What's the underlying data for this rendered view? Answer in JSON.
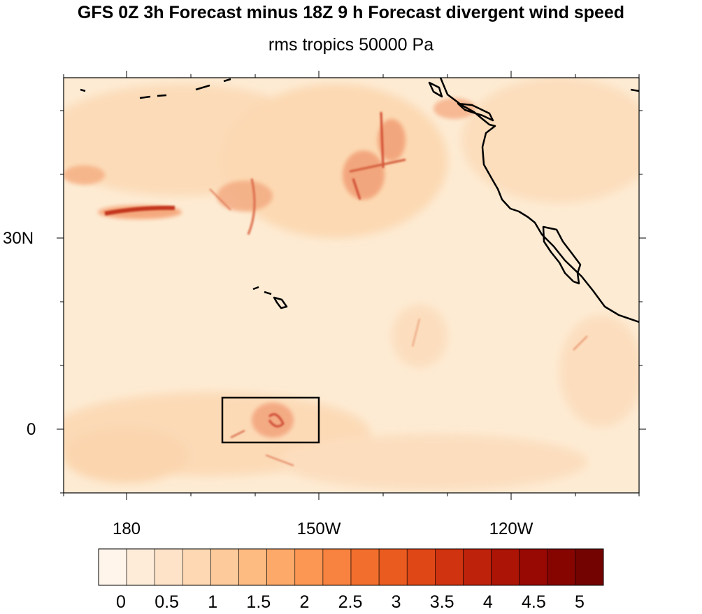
{
  "title": "GFS 0Z 3h Forecast minus 18Z 9 h Forecast divergent wind speed",
  "subtitle": "rms tropics 50000 Pa",
  "map": {
    "lat_labels": [
      "30N",
      "0"
    ],
    "lon_labels": [
      "180",
      "150W",
      "120W"
    ],
    "coastline_color": "#000000",
    "highlight_box": "box",
    "background_color": "#fdebd3"
  },
  "colorbar": {
    "labels": [
      "0",
      "0.5",
      "1",
      "1.5",
      "2",
      "2.5",
      "3",
      "3.5",
      "4",
      "4.5",
      "5"
    ],
    "colors": [
      "#fff5eb",
      "#feecd9",
      "#fee3c8",
      "#fdd8b3",
      "#fdcb9b",
      "#fdba81",
      "#fda96a",
      "#fc9653",
      "#f8823f",
      "#f26e2c",
      "#ea5b1f",
      "#df4716",
      "#d0330f",
      "#bf220a",
      "#ac1406",
      "#980903",
      "#860501",
      "#730301"
    ]
  }
}
